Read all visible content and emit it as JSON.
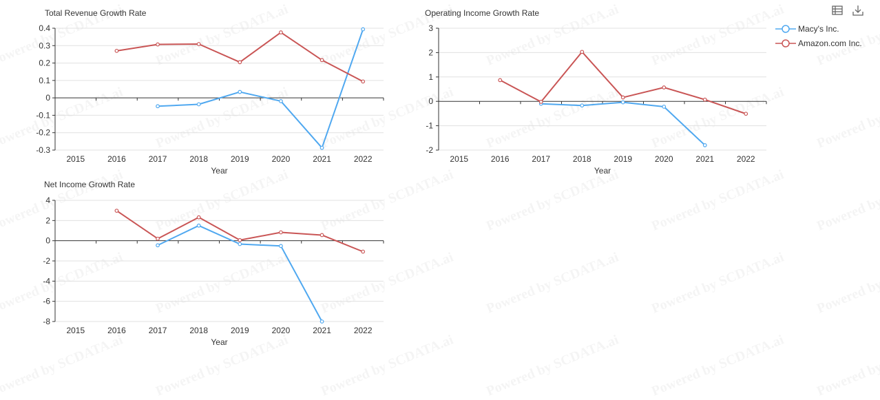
{
  "colors": {
    "macys": "#4fa8f0",
    "amazon": "#c95555",
    "axis": "#333333",
    "grid": "#e0e0e0",
    "text": "#333333"
  },
  "toolbar": {
    "icons": [
      "data-view-icon",
      "download-icon"
    ]
  },
  "legend": [
    {
      "name": "Macy's Inc.",
      "color": "#4fa8f0"
    },
    {
      "name": "Amazon.com Inc.",
      "color": "#c95555"
    }
  ],
  "watermark_text": "Powered by SCDATA.ai",
  "chart_data": [
    {
      "id": "revenue",
      "type": "line",
      "title": "Total Revenue Growth Rate",
      "xlabel": "Year",
      "ylabel": "",
      "categories": [
        "2015",
        "2016",
        "2017",
        "2018",
        "2019",
        "2020",
        "2021",
        "2022"
      ],
      "yticks": [
        0.4,
        0.3,
        0.2,
        0.1,
        0,
        -0.1,
        -0.2,
        -0.3
      ],
      "ytick_labels": [
        "0.4",
        "0.3",
        "0.2",
        "0.1",
        "0",
        "-0.1",
        "-0.2",
        "-0.3"
      ],
      "ylim": [
        -0.3,
        0.4
      ],
      "grid": true,
      "series": [
        {
          "name": "Macy's Inc.",
          "color": "#4fa8f0",
          "values": [
            null,
            null,
            -0.048,
            -0.037,
            0.034,
            -0.019,
            -0.287,
            0.394
          ]
        },
        {
          "name": "Amazon.com Inc.",
          "color": "#c95555",
          "values": [
            null,
            0.27,
            0.307,
            0.309,
            0.205,
            0.376,
            0.217,
            0.094
          ]
        }
      ]
    },
    {
      "id": "operating",
      "type": "line",
      "title": "Operating Income Growth Rate",
      "xlabel": "Year",
      "ylabel": "",
      "categories": [
        "2015",
        "2016",
        "2017",
        "2018",
        "2019",
        "2020",
        "2021",
        "2022"
      ],
      "yticks": [
        3,
        2,
        1,
        0,
        -1,
        -2
      ],
      "ytick_labels": [
        "3",
        "2",
        "1",
        "0",
        "-1",
        "-2"
      ],
      "ylim": [
        -2,
        3
      ],
      "grid": true,
      "series": [
        {
          "name": "Macy's Inc.",
          "color": "#4fa8f0",
          "values": [
            null,
            null,
            -0.1,
            -0.17,
            -0.04,
            -0.22,
            -1.8,
            null
          ]
        },
        {
          "name": "Amazon.com Inc.",
          "color": "#c95555",
          "values": [
            null,
            0.87,
            -0.02,
            2.03,
            0.16,
            0.57,
            0.07,
            -0.51
          ]
        }
      ]
    },
    {
      "id": "netincome",
      "type": "line",
      "title": "Net Income Growth Rate",
      "xlabel": "Year",
      "ylabel": "",
      "categories": [
        "2015",
        "2016",
        "2017",
        "2018",
        "2019",
        "2020",
        "2021",
        "2022"
      ],
      "yticks": [
        4,
        2,
        0,
        -2,
        -4,
        -6,
        -8
      ],
      "ytick_labels": [
        "4",
        "2",
        "0",
        "-2",
        "-4",
        "-6",
        "-8"
      ],
      "ylim": [
        -8,
        4
      ],
      "grid": true,
      "series": [
        {
          "name": "Macy's Inc.",
          "color": "#4fa8f0",
          "values": [
            null,
            null,
            -0.45,
            1.5,
            -0.33,
            -0.52,
            -8.0,
            null
          ]
        },
        {
          "name": "Amazon.com Inc.",
          "color": "#c95555",
          "values": [
            null,
            2.97,
            0.2,
            2.32,
            0.06,
            0.83,
            0.56,
            -1.08
          ]
        }
      ]
    }
  ]
}
